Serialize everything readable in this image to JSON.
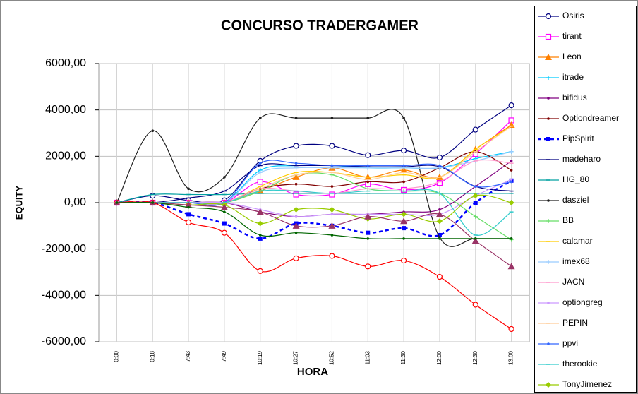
{
  "chart_data": {
    "type": "line",
    "smooth": true,
    "grid": true,
    "legend": "right",
    "title": "CONCURSO TRADERGAMER",
    "x_label": "HORA",
    "y_label": "EQUITY",
    "categories": [
      "0:00",
      "0:18",
      "7:43",
      "7:49",
      "10:19",
      "10:27",
      "10:52",
      "11:03",
      "11:30",
      "12:00",
      "12:30",
      "13:00"
    ],
    "ylim": [
      -6000,
      6000
    ],
    "yticks": [
      {
        "value": -6000,
        "label": "-6000,00"
      },
      {
        "value": -4000,
        "label": "-4000,00"
      },
      {
        "value": -2000,
        "label": "-2000,00"
      },
      {
        "value": 0,
        "label": "0,00"
      },
      {
        "value": 2000,
        "label": "2000,00"
      },
      {
        "value": 4000,
        "label": "4000,00"
      },
      {
        "value": 6000,
        "label": "6000,00"
      }
    ],
    "series": [
      {
        "name": "Osiris",
        "color": "#000080",
        "marker": "circle-open",
        "values": [
          0,
          300,
          100,
          100,
          1800,
          2450,
          2450,
          2050,
          2250,
          1950,
          3150,
          4200
        ]
      },
      {
        "name": "tirant",
        "color": "#ff00ff",
        "marker": "square-open",
        "values": [
          0,
          0,
          0,
          0,
          900,
          350,
          350,
          800,
          550,
          850,
          2100,
          3550
        ]
      },
      {
        "name": "Leon",
        "color": "#ff8000",
        "marker": "triangle",
        "values": [
          0,
          0,
          0,
          0,
          500,
          1100,
          1500,
          1100,
          1400,
          1100,
          2300,
          3350
        ]
      },
      {
        "name": "itrade",
        "color": "#00ccff",
        "marker": "plus",
        "values": [
          0,
          0,
          0,
          0,
          1400,
          1600,
          1600,
          1500,
          1500,
          1500,
          1900,
          2200
        ]
      },
      {
        "name": "bifidus",
        "color": "#800080",
        "marker": "dot",
        "values": [
          0,
          0,
          0,
          0,
          -400,
          -600,
          -500,
          -500,
          -400,
          -300,
          700,
          1800
        ]
      },
      {
        "name": "Optiondreamer",
        "color": "#800000",
        "marker": "dot",
        "values": [
          0,
          0,
          0,
          0,
          600,
          800,
          700,
          900,
          900,
          1500,
          2200,
          1400
        ]
      },
      {
        "name": "PipSpirit",
        "color": "#0000ff",
        "marker": "square",
        "dashed": true,
        "values": [
          0,
          0,
          -500,
          -900,
          -1550,
          -900,
          -1000,
          -1300,
          -1100,
          -1400,
          0,
          950
        ]
      },
      {
        "name": "madeharo",
        "color": "#000080",
        "marker": "dash",
        "values": [
          0,
          0,
          200,
          500,
          1600,
          1600,
          1600,
          1550,
          1550,
          1550,
          700,
          500
        ]
      },
      {
        "name": "HG_80",
        "color": "#00a0a0",
        "marker": "dash",
        "values": [
          0,
          350,
          350,
          350,
          400,
          400,
          400,
          400,
          400,
          400,
          400,
          400
        ]
      },
      {
        "name": "dasziel",
        "color": "#202020",
        "marker": "dot",
        "values": [
          0,
          3100,
          600,
          1100,
          3650,
          3650,
          3650,
          3650,
          3650,
          -1500,
          -1550,
          -1550
        ]
      },
      {
        "name": "BB",
        "color": "#66dd66",
        "marker": "plus",
        "values": [
          0,
          0,
          0,
          0,
          500,
          1200,
          1200,
          600,
          500,
          400,
          -600,
          -1600
        ]
      },
      {
        "name": "calamar",
        "color": "#ffcc00",
        "marker": "dash",
        "values": [
          0,
          0,
          0,
          0,
          700,
          1300,
          1300,
          1100,
          1200,
          1100,
          2300,
          3300
        ]
      },
      {
        "name": "imex68",
        "color": "#99ccff",
        "marker": "plus",
        "values": [
          0,
          0,
          0,
          0,
          1300,
          1500,
          1500,
          1500,
          1500,
          1500,
          1800,
          2200
        ]
      },
      {
        "name": "JACN",
        "color": "#ff99cc",
        "marker": "dash",
        "values": [
          0,
          0,
          0,
          0,
          600,
          500,
          400,
          600,
          600,
          900,
          1800,
          1700
        ]
      },
      {
        "name": "optiongreg",
        "color": "#cc99ff",
        "marker": "dot",
        "values": [
          0,
          0,
          0,
          0,
          -300,
          -600,
          -500,
          -500,
          -500,
          -500,
          300,
          1000
        ]
      },
      {
        "name": "PEPIN",
        "color": "#ffcc99",
        "marker": "dash",
        "values": [
          0,
          0,
          0,
          0,
          600,
          1200,
          1300,
          1000,
          1300,
          1100,
          2200,
          3300
        ]
      },
      {
        "name": "ppvi",
        "color": "#3366ff",
        "marker": "dot",
        "values": [
          0,
          0,
          0,
          0,
          1700,
          1700,
          1600,
          1600,
          1600,
          1600,
          700,
          900
        ]
      },
      {
        "name": "therookie",
        "color": "#33cccc",
        "marker": "dash",
        "values": [
          0,
          0,
          0,
          0,
          500,
          500,
          400,
          500,
          500,
          400,
          -1400,
          -400
        ]
      },
      {
        "name": "TonyJimenez",
        "color": "#99cc00",
        "marker": "diamond",
        "values": [
          0,
          0,
          -100,
          -100,
          -900,
          -300,
          -300,
          -700,
          -500,
          -800,
          300,
          0
        ]
      },
      {
        "color": "#ff0000",
        "marker": "circle-open",
        "values": [
          0,
          0,
          -850,
          -1300,
          -2950,
          -2400,
          -2300,
          -2750,
          -2500,
          -3200,
          -4400,
          -5450
        ]
      },
      {
        "color": "#993366",
        "marker": "triangle",
        "values": [
          0,
          0,
          -100,
          -200,
          -400,
          -1000,
          -1000,
          -600,
          -800,
          -500,
          -1650,
          -2750
        ]
      },
      {
        "color": "#006600",
        "marker": "dot",
        "values": [
          0,
          0,
          -200,
          -400,
          -1400,
          -1300,
          -1400,
          -1550,
          -1550,
          -1550,
          -1550,
          -1550
        ]
      }
    ]
  }
}
